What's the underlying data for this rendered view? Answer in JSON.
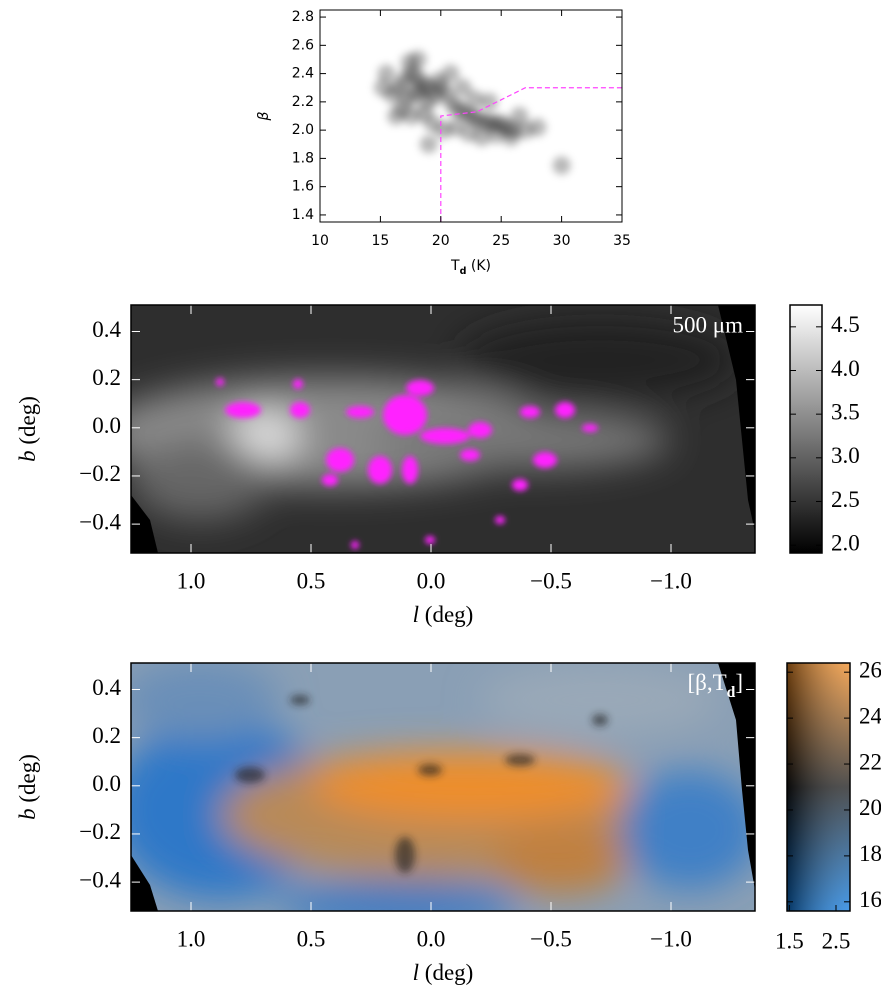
{
  "chart_data": [
    {
      "type": "scatter",
      "xlabel": [
        "T",
        "d",
        " (K)"
      ],
      "ylabel": "β",
      "xlim": [
        10,
        35
      ],
      "ylim": [
        1.35,
        2.85
      ],
      "xticks": [
        10,
        15,
        20,
        25,
        30,
        35
      ],
      "yticks": [
        1.4,
        1.6,
        1.8,
        {
          "value": 2,
          "label": "2.0"
        },
        2.2,
        2.4,
        2.6,
        2.8
      ],
      "series": [
        {
          "color": "#000000",
          "x": [
            16.5,
            17,
            17.5,
            18,
            18.5,
            19,
            17.2,
            17.8,
            18.3,
            18.9,
            19.5,
            20,
            20.5,
            21,
            21.5,
            22,
            22.5,
            23,
            23.5,
            24,
            24.5,
            25,
            25.5,
            26,
            16,
            15.5,
            16.8,
            17.6,
            18.6,
            19.3,
            20.2,
            21.2,
            22.3,
            23.4,
            24.6,
            25.8,
            27,
            28,
            19.8,
            18.1,
            17.4,
            16.3,
            20.8,
            21.8,
            22.8,
            15.2,
            19,
            24,
            26.5,
            30
          ],
          "values": [
            2.3,
            2.35,
            2.4,
            2.38,
            2.33,
            2.3,
            2.22,
            2.25,
            2.28,
            2.2,
            2.24,
            2.3,
            2.25,
            2.18,
            2.15,
            2.12,
            2.1,
            2.08,
            2.05,
            2.06,
            2.04,
            2.05,
            2.02,
            2.0,
            2.25,
            2.4,
            2.15,
            2.1,
            2.12,
            2.05,
            2.0,
            2.02,
            1.98,
            1.95,
            1.97,
            1.95,
            2.0,
            2.02,
            2.35,
            2.5,
            2.48,
            2.1,
            2.4,
            2.3,
            2.22,
            2.3,
            1.9,
            2.2,
            2.1,
            1.75
          ]
        },
        {
          "type": "line",
          "color": "#ff44ff",
          "dash": true,
          "x": [
            20,
            20,
            23,
            27,
            35
          ],
          "values": [
            1.35,
            2.1,
            2.13,
            2.3,
            2.3
          ]
        }
      ]
    },
    {
      "type": "heatmap",
      "xlabel": [
        "l",
        " (deg)"
      ],
      "ylabel": [
        "b",
        " (deg)"
      ],
      "annotation": "500 μm",
      "xlim": [
        1.25,
        -1.35
      ],
      "ylim": [
        -0.52,
        0.51
      ],
      "xticks": [
        {
          "value": 1,
          "label": "1.0"
        },
        0.5,
        {
          "value": 0,
          "label": "0.0"
        },
        {
          "value": -0.5,
          "label": "−0.5"
        },
        {
          "value": -1,
          "label": "−1.0"
        }
      ],
      "yticks": [
        {
          "value": -0.4,
          "label": "−0.4"
        },
        {
          "value": -0.2,
          "label": "−0.2"
        },
        {
          "value": 0,
          "label": "0.0"
        },
        0.2,
        0.4
      ],
      "colorbar": {
        "ylim": [
          1.91,
          4.75
        ],
        "colors": [
          "#000000",
          "#ffffff"
        ],
        "yticks": [
          {
            "value": 2,
            "label": "2.0"
          },
          2.5,
          {
            "value": 3,
            "label": "3.0"
          },
          3.5,
          {
            "value": 4,
            "label": "4.0"
          },
          4.5
        ]
      }
    },
    {
      "type": "heatmap",
      "xlabel": [
        "l",
        " (deg)"
      ],
      "ylabel": [
        "b",
        " (deg)"
      ],
      "annotation": [
        "[β,T",
        "d",
        "]"
      ],
      "xlim": [
        1.25,
        -1.35
      ],
      "ylim": [
        -0.52,
        0.51
      ],
      "xticks": [
        {
          "value": 1,
          "label": "1.0"
        },
        0.5,
        {
          "value": 0,
          "label": "0.0"
        },
        {
          "value": -0.5,
          "label": "−0.5"
        },
        {
          "value": -1,
          "label": "−1.0"
        }
      ],
      "yticks": [
        {
          "value": -0.4,
          "label": "−0.4"
        },
        {
          "value": -0.2,
          "label": "−0.2"
        },
        {
          "value": 0,
          "label": "0.0"
        },
        0.2,
        0.4
      ],
      "colorbar": {
        "ylim": [
          15.6,
          26.4
        ],
        "colors": [
          "#0a78e0",
          "#151515",
          "#f08a22"
        ],
        "yticks": [
          16,
          18,
          20,
          22,
          24,
          26
        ],
        "xlim": [
          1.45,
          2.8
        ],
        "xticks": [
          1.5,
          2.5
        ]
      }
    }
  ]
}
